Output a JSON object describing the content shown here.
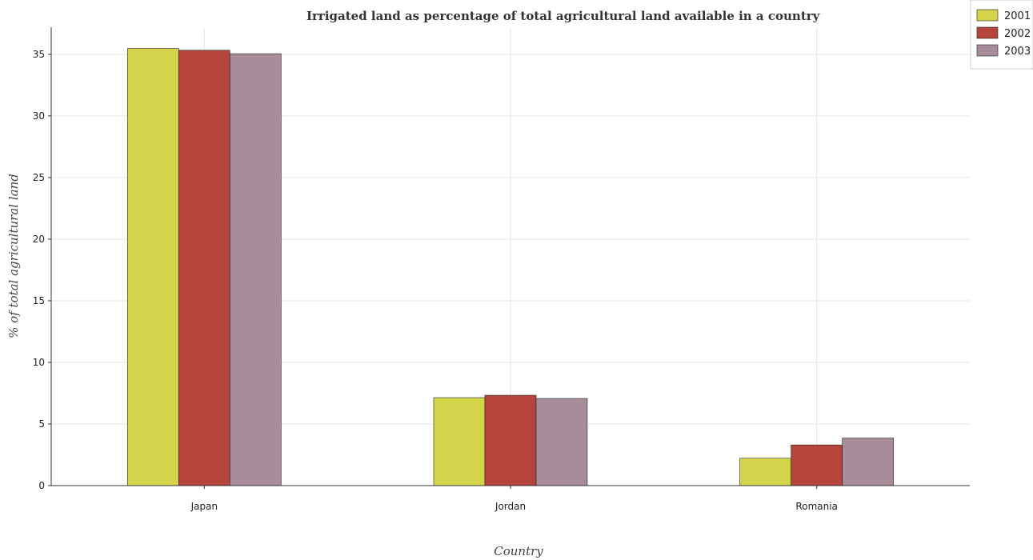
{
  "chart_data": {
    "type": "bar",
    "title": "Irrigated land as percentage of total agricultural land available in a country",
    "xlabel": "Country",
    "ylabel": "% of total agricultural land",
    "categories": [
      "Japan",
      "Jordan",
      "Romania"
    ],
    "series": [
      {
        "name": "2001",
        "color": "#d4d44a",
        "values": [
          35.47,
          7.14,
          2.22
        ]
      },
      {
        "name": "2002",
        "color": "#b5443c",
        "values": [
          35.33,
          7.33,
          3.3
        ]
      },
      {
        "name": "2003",
        "color": "#a88c9a",
        "values": [
          35.05,
          7.07,
          3.86
        ]
      }
    ],
    "ylim": [
      0,
      37.2
    ],
    "yticks": [
      0,
      5,
      10,
      15,
      20,
      25,
      30,
      35
    ],
    "grid": true,
    "legend_position": "top-right"
  }
}
